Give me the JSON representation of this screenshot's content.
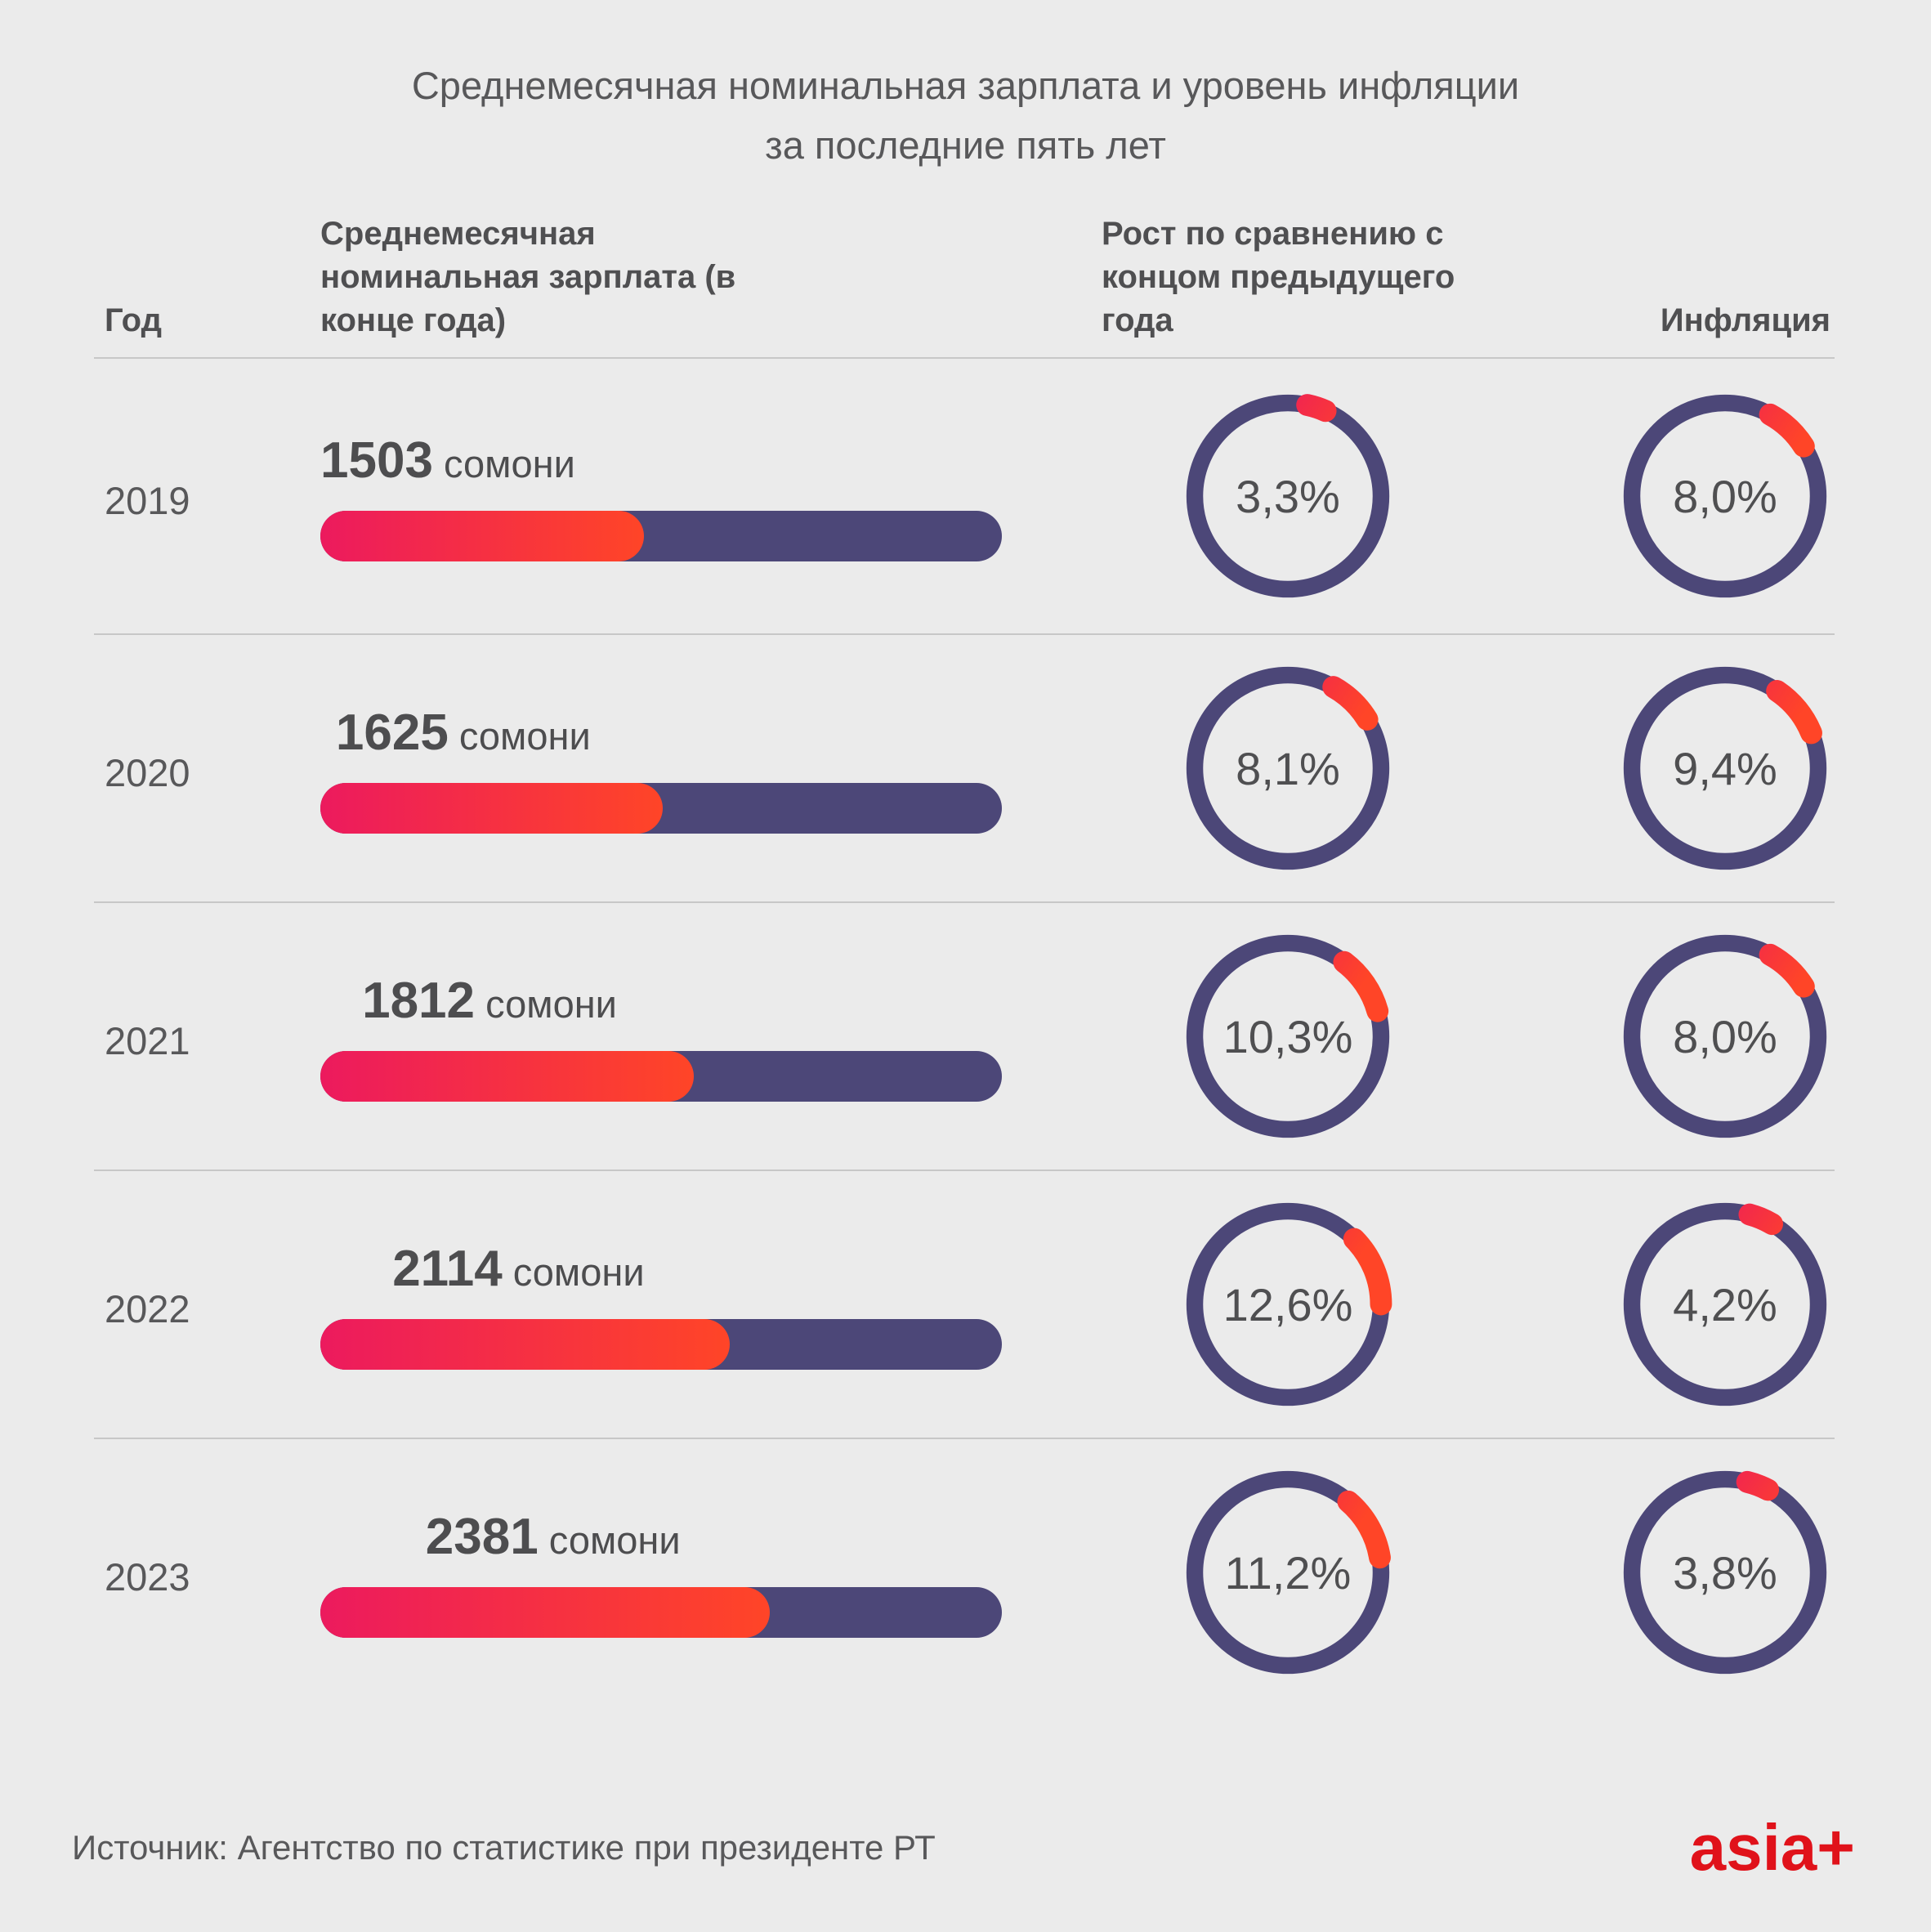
{
  "title": {
    "line1": "Среднемесячная номинальная зарплата и уровень инфляции",
    "line2": "за последние пять лет"
  },
  "columns": {
    "year": "Год",
    "salary": "Среднемесячная номинальная зарплата (в конце года)",
    "growth": "Рост по сравнению с концом предыдущего года",
    "inflation": "Инфляция"
  },
  "unit": "сомони",
  "rows": [
    {
      "year": "2019",
      "salary": "1503",
      "bar_pct": 47.5,
      "growth": {
        "label": "3,3%",
        "value": 3.3
      },
      "inflation": {
        "label": "8,0%",
        "value": 8.0
      }
    },
    {
      "year": "2020",
      "salary": "1625",
      "bar_pct": 50.2,
      "growth": {
        "label": "8,1%",
        "value": 8.1
      },
      "inflation": {
        "label": "9,4%",
        "value": 9.4
      }
    },
    {
      "year": "2021",
      "salary": "1812",
      "bar_pct": 54.8,
      "growth": {
        "label": "10,3%",
        "value": 10.3
      },
      "inflation": {
        "label": "8,0%",
        "value": 8.0
      }
    },
    {
      "year": "2022",
      "salary": "2114",
      "bar_pct": 60.1,
      "growth": {
        "label": "12,6%",
        "value": 12.6
      },
      "inflation": {
        "label": "4,2%",
        "value": 4.2
      }
    },
    {
      "year": "2023",
      "salary": "2381",
      "bar_pct": 65.9,
      "growth": {
        "label": "11,2%",
        "value": 11.2
      },
      "inflation": {
        "label": "3,8%",
        "value": 3.8
      }
    }
  ],
  "footer": {
    "source": "Источник: Агентство по статистике при президенте РТ",
    "logo": "asia+"
  },
  "colors": {
    "background": "#EBEBEB",
    "text_gray": "#58585A",
    "text_dark": "#4D4D4F",
    "bar_purple": "#4C4778",
    "gradient_pink": "#EC1A5E",
    "gradient_red": "#FF4527",
    "separator": "#C7C7C7",
    "logo_red": "#E0121A"
  },
  "chart_data": {
    "type": "table",
    "title": "Среднемесячная номинальная зарплата и уровень инфляции за последние пять лет",
    "categories": [
      "2019",
      "2020",
      "2021",
      "2022",
      "2023"
    ],
    "series": [
      {
        "name": "Среднемесячная номинальная зарплата (в конце года), сомони",
        "values": [
          1503,
          1625,
          1812,
          2114,
          2381
        ]
      },
      {
        "name": "Рост по сравнению с концом предыдущего года, %",
        "values": [
          3.3,
          8.1,
          10.3,
          12.6,
          11.2
        ]
      },
      {
        "name": "Инфляция, %",
        "values": [
          8.0,
          9.4,
          8.0,
          4.2,
          3.8
        ]
      }
    ],
    "legend_position": "none",
    "grid": false,
    "source": "Агентство по статистике при президенте РТ"
  }
}
